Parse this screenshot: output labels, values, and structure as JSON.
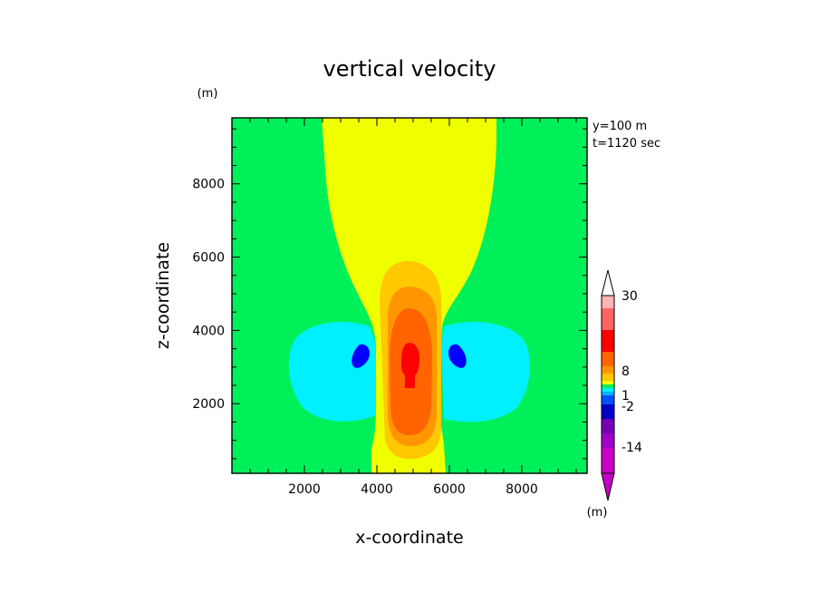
{
  "chart_data": {
    "type": "contour",
    "title": "vertical velocity",
    "xlabel": "x-coordinate",
    "ylabel": "z-coordinate",
    "y_unit": "(m)",
    "colorbar_unit": "(m)",
    "annotation": [
      "y=100 m",
      "t=1120 sec"
    ],
    "xlim": [
      0,
      9800
    ],
    "ylim": [
      100,
      9800
    ],
    "xticks": [
      "2000",
      "4000",
      "6000",
      "8000"
    ],
    "yticks": [
      "2000",
      "4000",
      "6000",
      "8000"
    ],
    "colorbar": {
      "labels": [
        "30",
        "8",
        "1",
        "-2",
        "-14"
      ],
      "colors": [
        "#c800c8",
        "#a000c8",
        "#7800b4",
        "#0000c8",
        "#0050ff",
        "#00b4ff",
        "#00f0ff",
        "#00f05a",
        "#f0ff00",
        "#ffc800",
        "#ff9600",
        "#ff6400",
        "#ff0000",
        "#ff6464",
        "#ffb4b4"
      ]
    },
    "regions": [
      {
        "level": "green",
        "color": "#00f05a"
      },
      {
        "level": "yellow",
        "color": "#f0ff00"
      },
      {
        "level": "cyan",
        "color": "#00f0ff"
      },
      {
        "level": "blue",
        "color": "#0000ff"
      },
      {
        "level": "light-orange",
        "color": "#ffc800"
      },
      {
        "level": "orange",
        "color": "#ff9600"
      },
      {
        "level": "dark-orange",
        "color": "#ff6400"
      },
      {
        "level": "red",
        "color": "#ff0000"
      }
    ]
  }
}
